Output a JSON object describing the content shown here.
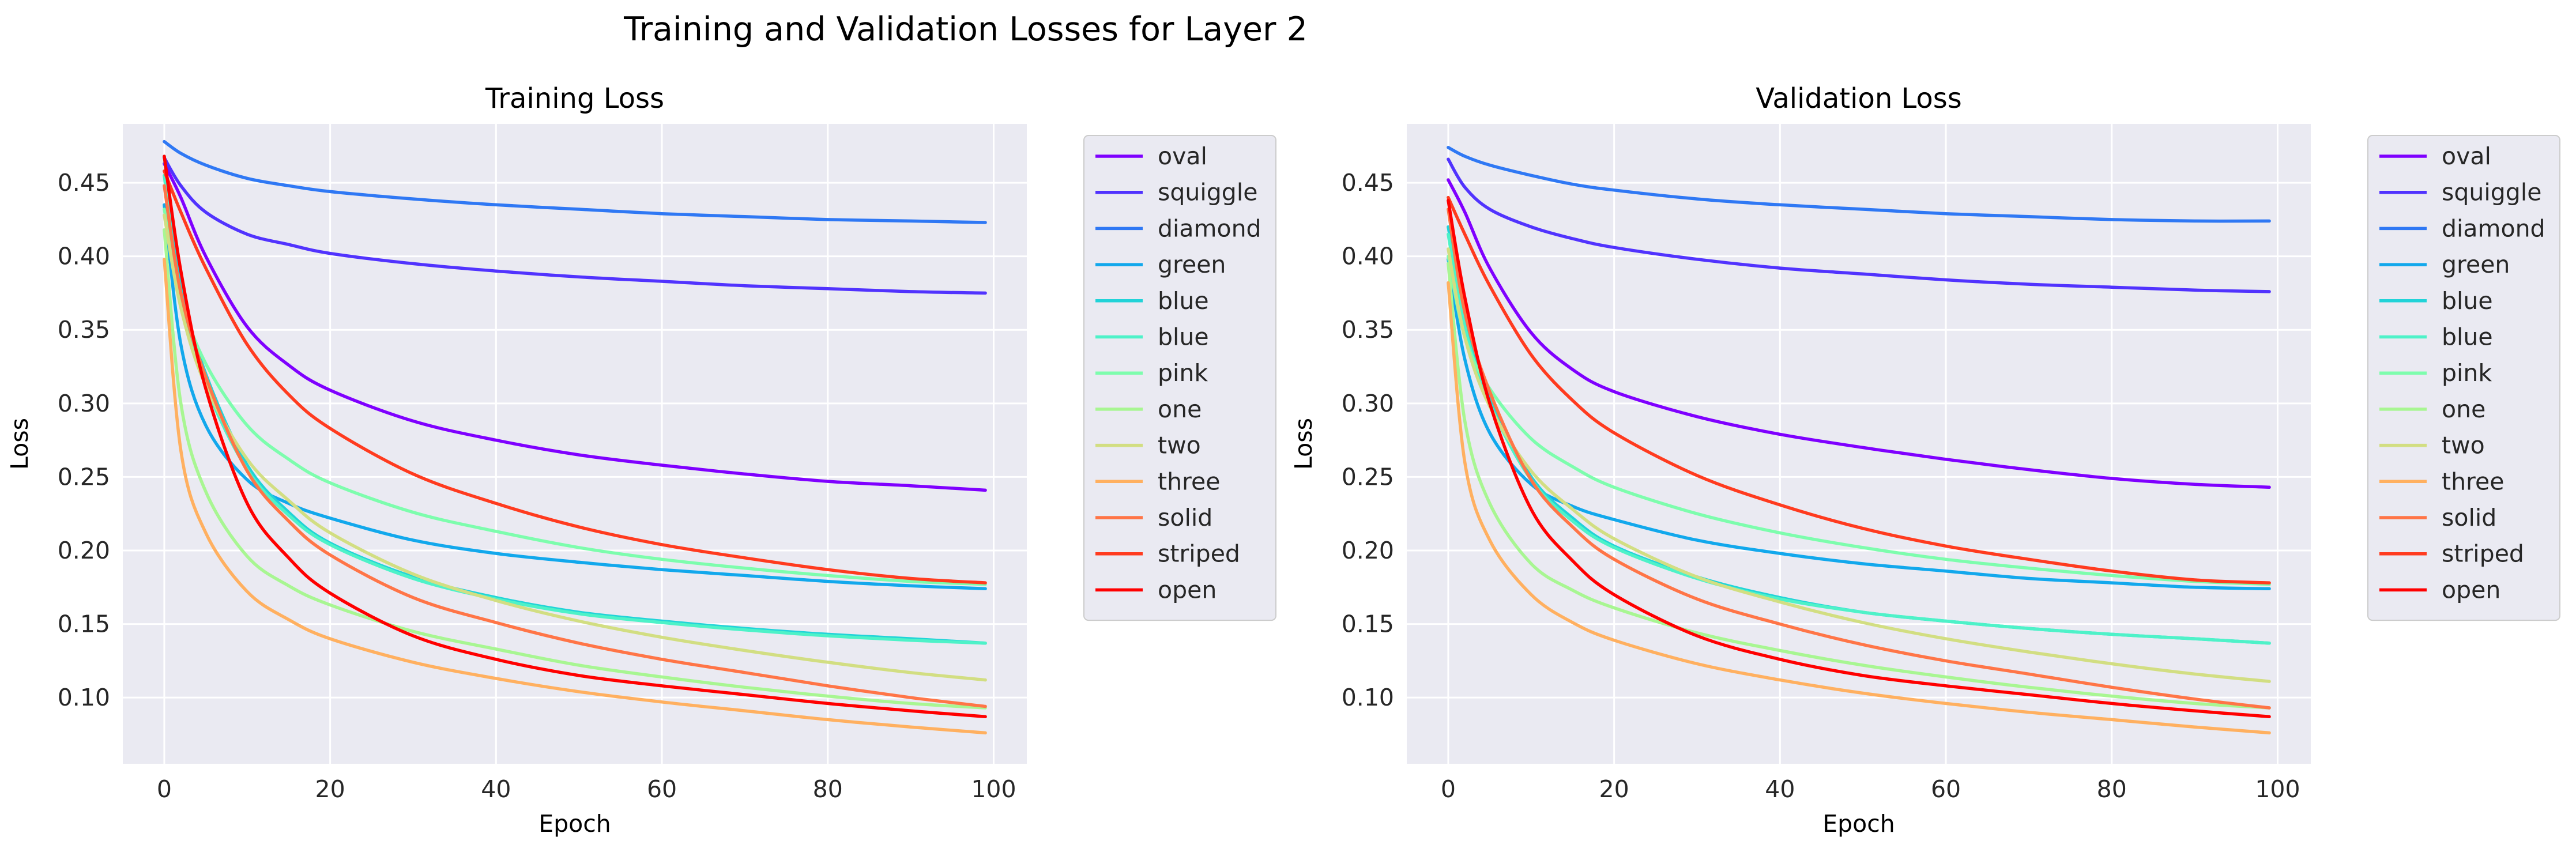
{
  "title": "Training and Validation Losses for Layer 2",
  "chart_data": [
    {
      "type": "line",
      "title": "Training Loss",
      "xlabel": "Epoch",
      "ylabel": "Loss",
      "xlim": [
        -5,
        104
      ],
      "ylim": [
        0.055,
        0.49
      ],
      "xticks": [
        0,
        20,
        40,
        60,
        80,
        100
      ],
      "yticks": [
        0.1,
        0.15,
        0.2,
        0.25,
        0.3,
        0.35,
        0.4,
        0.45
      ],
      "grid": true,
      "legend_position": "outside-right",
      "series": [
        {
          "name": "oval",
          "color": "#7f00ff",
          "x": [
            0,
            2,
            5,
            10,
            15,
            20,
            30,
            40,
            50,
            60,
            70,
            80,
            90,
            99
          ],
          "y": [
            0.463,
            0.44,
            0.4,
            0.352,
            0.326,
            0.309,
            0.288,
            0.275,
            0.265,
            0.258,
            0.252,
            0.247,
            0.244,
            0.241
          ]
        },
        {
          "name": "squiggle",
          "color": "#5133fe",
          "x": [
            0,
            2,
            5,
            10,
            15,
            20,
            30,
            40,
            50,
            60,
            70,
            80,
            90,
            99
          ],
          "y": [
            0.467,
            0.448,
            0.43,
            0.415,
            0.408,
            0.402,
            0.395,
            0.39,
            0.386,
            0.383,
            0.38,
            0.378,
            0.376,
            0.375
          ]
        },
        {
          "name": "diamond",
          "color": "#2f78f4",
          "x": [
            0,
            2,
            5,
            10,
            15,
            20,
            30,
            40,
            50,
            60,
            70,
            80,
            90,
            99
          ],
          "y": [
            0.478,
            0.47,
            0.462,
            0.453,
            0.448,
            0.444,
            0.439,
            0.435,
            0.432,
            0.429,
            0.427,
            0.425,
            0.424,
            0.423
          ]
        },
        {
          "name": "green",
          "color": "#12a8ec",
          "x": [
            0,
            2,
            5,
            10,
            15,
            20,
            30,
            40,
            50,
            60,
            70,
            80,
            90,
            99
          ],
          "y": [
            0.435,
            0.34,
            0.285,
            0.248,
            0.232,
            0.222,
            0.207,
            0.198,
            0.192,
            0.187,
            0.183,
            0.179,
            0.176,
            0.174
          ]
        },
        {
          "name": "blue",
          "color": "#21d3d8",
          "x": [
            0,
            2,
            5,
            10,
            15,
            20,
            30,
            40,
            50,
            60,
            70,
            80,
            90,
            99
          ],
          "y": [
            0.468,
            0.38,
            0.32,
            0.258,
            0.226,
            0.205,
            0.182,
            0.168,
            0.158,
            0.152,
            0.147,
            0.143,
            0.14,
            0.137
          ]
        },
        {
          "name": "blue",
          "color": "#4ef2c8",
          "x": [
            0,
            2,
            5,
            10,
            15,
            20,
            30,
            40,
            50,
            60,
            70,
            80,
            90,
            99
          ],
          "y": [
            0.455,
            0.37,
            0.312,
            0.255,
            0.224,
            0.204,
            0.181,
            0.167,
            0.157,
            0.151,
            0.146,
            0.142,
            0.139,
            0.137
          ]
        },
        {
          "name": "pink",
          "color": "#7dfdad",
          "x": [
            0,
            2,
            5,
            10,
            15,
            20,
            30,
            40,
            50,
            60,
            70,
            80,
            90,
            99
          ],
          "y": [
            0.432,
            0.372,
            0.327,
            0.285,
            0.262,
            0.246,
            0.226,
            0.213,
            0.202,
            0.194,
            0.188,
            0.183,
            0.179,
            0.177
          ]
        },
        {
          "name": "one",
          "color": "#a8f692",
          "x": [
            0,
            2,
            5,
            10,
            15,
            20,
            30,
            40,
            50,
            60,
            70,
            80,
            90,
            99
          ],
          "y": [
            0.418,
            0.3,
            0.24,
            0.196,
            0.176,
            0.163,
            0.145,
            0.133,
            0.122,
            0.114,
            0.107,
            0.101,
            0.096,
            0.093
          ]
        },
        {
          "name": "two",
          "color": "#d2de82",
          "x": [
            0,
            2,
            5,
            10,
            15,
            20,
            30,
            40,
            50,
            60,
            70,
            80,
            90,
            99
          ],
          "y": [
            0.428,
            0.365,
            0.312,
            0.262,
            0.234,
            0.212,
            0.184,
            0.166,
            0.152,
            0.141,
            0.132,
            0.124,
            0.117,
            0.112
          ]
        },
        {
          "name": "three",
          "color": "#ffb060",
          "x": [
            0,
            2,
            5,
            10,
            15,
            20,
            30,
            40,
            50,
            60,
            70,
            80,
            90,
            99
          ],
          "y": [
            0.398,
            0.268,
            0.212,
            0.172,
            0.153,
            0.14,
            0.124,
            0.113,
            0.104,
            0.097,
            0.091,
            0.085,
            0.08,
            0.076
          ]
        },
        {
          "name": "solid",
          "color": "#ff7547",
          "x": [
            0,
            2,
            5,
            10,
            15,
            20,
            30,
            40,
            50,
            60,
            70,
            80,
            90,
            99
          ],
          "y": [
            0.448,
            0.375,
            0.318,
            0.254,
            0.22,
            0.197,
            0.168,
            0.151,
            0.137,
            0.126,
            0.117,
            0.108,
            0.1,
            0.094
          ]
        },
        {
          "name": "striped",
          "color": "#ff3b1f",
          "x": [
            0,
            2,
            5,
            10,
            15,
            20,
            30,
            40,
            50,
            60,
            70,
            80,
            90,
            99
          ],
          "y": [
            0.458,
            0.43,
            0.392,
            0.34,
            0.306,
            0.283,
            0.252,
            0.232,
            0.216,
            0.204,
            0.195,
            0.187,
            0.181,
            0.178
          ]
        },
        {
          "name": "open",
          "color": "#ff0000",
          "x": [
            0,
            2,
            5,
            10,
            15,
            20,
            30,
            40,
            50,
            60,
            70,
            80,
            90,
            99
          ],
          "y": [
            0.468,
            0.39,
            0.31,
            0.232,
            0.195,
            0.171,
            0.142,
            0.126,
            0.115,
            0.108,
            0.102,
            0.096,
            0.091,
            0.087
          ]
        }
      ]
    },
    {
      "type": "line",
      "title": "Validation Loss",
      "xlabel": "Epoch",
      "ylabel": "Loss",
      "xlim": [
        -5,
        104
      ],
      "ylim": [
        0.055,
        0.49
      ],
      "xticks": [
        0,
        20,
        40,
        60,
        80,
        100
      ],
      "yticks": [
        0.1,
        0.15,
        0.2,
        0.25,
        0.3,
        0.35,
        0.4,
        0.45
      ],
      "grid": true,
      "legend_position": "outside-right",
      "series": [
        {
          "name": "oval",
          "color": "#7f00ff",
          "x": [
            0,
            2,
            5,
            10,
            15,
            20,
            30,
            40,
            50,
            60,
            70,
            80,
            90,
            99
          ],
          "y": [
            0.452,
            0.43,
            0.392,
            0.348,
            0.323,
            0.308,
            0.291,
            0.279,
            0.27,
            0.262,
            0.255,
            0.249,
            0.245,
            0.243
          ]
        },
        {
          "name": "squiggle",
          "color": "#5133fe",
          "x": [
            0,
            2,
            5,
            10,
            15,
            20,
            30,
            40,
            50,
            60,
            70,
            80,
            90,
            99
          ],
          "y": [
            0.466,
            0.447,
            0.432,
            0.42,
            0.412,
            0.406,
            0.398,
            0.392,
            0.388,
            0.384,
            0.381,
            0.379,
            0.377,
            0.376
          ]
        },
        {
          "name": "diamond",
          "color": "#2f78f4",
          "x": [
            0,
            2,
            5,
            10,
            15,
            20,
            30,
            40,
            50,
            60,
            70,
            80,
            90,
            99
          ],
          "y": [
            0.474,
            0.468,
            0.462,
            0.455,
            0.449,
            0.445,
            0.439,
            0.435,
            0.432,
            0.429,
            0.427,
            0.425,
            0.424,
            0.424
          ]
        },
        {
          "name": "green",
          "color": "#12a8ec",
          "x": [
            0,
            2,
            5,
            10,
            15,
            20,
            30,
            40,
            50,
            60,
            70,
            80,
            90,
            99
          ],
          "y": [
            0.398,
            0.33,
            0.28,
            0.245,
            0.23,
            0.221,
            0.207,
            0.198,
            0.191,
            0.186,
            0.181,
            0.178,
            0.175,
            0.174
          ]
        },
        {
          "name": "blue",
          "color": "#21d3d8",
          "x": [
            0,
            2,
            5,
            10,
            15,
            20,
            30,
            40,
            50,
            60,
            70,
            80,
            90,
            99
          ],
          "y": [
            0.42,
            0.36,
            0.305,
            0.25,
            0.222,
            0.203,
            0.182,
            0.168,
            0.158,
            0.152,
            0.147,
            0.143,
            0.14,
            0.137
          ]
        },
        {
          "name": "blue",
          "color": "#4ef2c8",
          "x": [
            0,
            2,
            5,
            10,
            15,
            20,
            30,
            40,
            50,
            60,
            70,
            80,
            90,
            99
          ],
          "y": [
            0.415,
            0.352,
            0.3,
            0.248,
            0.22,
            0.202,
            0.181,
            0.167,
            0.158,
            0.152,
            0.147,
            0.143,
            0.14,
            0.137
          ]
        },
        {
          "name": "pink",
          "color": "#7dfdad",
          "x": [
            0,
            2,
            5,
            10,
            15,
            20,
            30,
            40,
            50,
            60,
            70,
            80,
            90,
            99
          ],
          "y": [
            0.4,
            0.345,
            0.31,
            0.276,
            0.257,
            0.243,
            0.225,
            0.212,
            0.202,
            0.194,
            0.188,
            0.183,
            0.179,
            0.177
          ]
        },
        {
          "name": "one",
          "color": "#a8f692",
          "x": [
            0,
            2,
            5,
            10,
            15,
            20,
            30,
            40,
            50,
            60,
            70,
            80,
            90,
            99
          ],
          "y": [
            0.395,
            0.288,
            0.232,
            0.191,
            0.173,
            0.161,
            0.144,
            0.132,
            0.122,
            0.114,
            0.107,
            0.101,
            0.096,
            0.093
          ]
        },
        {
          "name": "two",
          "color": "#d2de82",
          "x": [
            0,
            2,
            5,
            10,
            15,
            20,
            30,
            40,
            50,
            60,
            70,
            80,
            90,
            99
          ],
          "y": [
            0.405,
            0.345,
            0.298,
            0.254,
            0.228,
            0.208,
            0.182,
            0.165,
            0.151,
            0.14,
            0.131,
            0.123,
            0.116,
            0.111
          ]
        },
        {
          "name": "three",
          "color": "#ffb060",
          "x": [
            0,
            2,
            5,
            10,
            15,
            20,
            30,
            40,
            50,
            60,
            70,
            80,
            90,
            99
          ],
          "y": [
            0.382,
            0.26,
            0.207,
            0.17,
            0.151,
            0.139,
            0.123,
            0.112,
            0.103,
            0.096,
            0.09,
            0.085,
            0.08,
            0.076
          ]
        },
        {
          "name": "solid",
          "color": "#ff7547",
          "x": [
            0,
            2,
            5,
            10,
            15,
            20,
            30,
            40,
            50,
            60,
            70,
            80,
            90,
            99
          ],
          "y": [
            0.432,
            0.362,
            0.308,
            0.248,
            0.216,
            0.194,
            0.167,
            0.15,
            0.136,
            0.125,
            0.116,
            0.107,
            0.099,
            0.093
          ]
        },
        {
          "name": "striped",
          "color": "#ff3b1f",
          "x": [
            0,
            2,
            5,
            10,
            15,
            20,
            30,
            40,
            50,
            60,
            70,
            80,
            90,
            99
          ],
          "y": [
            0.44,
            0.415,
            0.38,
            0.333,
            0.302,
            0.28,
            0.251,
            0.231,
            0.215,
            0.203,
            0.194,
            0.186,
            0.18,
            0.178
          ]
        },
        {
          "name": "open",
          "color": "#ff0000",
          "x": [
            0,
            2,
            5,
            10,
            15,
            20,
            30,
            40,
            50,
            60,
            70,
            80,
            90,
            99
          ],
          "y": [
            0.438,
            0.372,
            0.3,
            0.228,
            0.193,
            0.17,
            0.142,
            0.126,
            0.115,
            0.108,
            0.102,
            0.096,
            0.091,
            0.087
          ]
        }
      ]
    }
  ]
}
